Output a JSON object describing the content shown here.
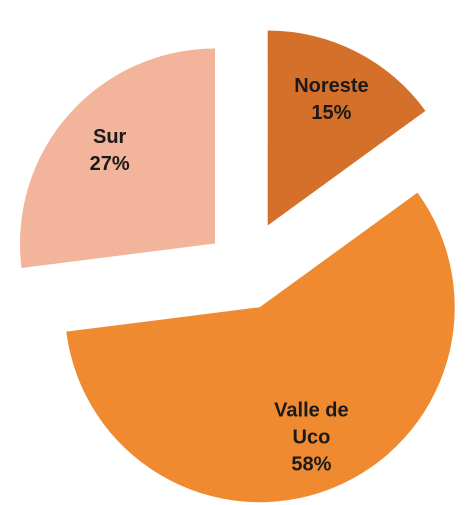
{
  "chart_data": {
    "type": "pie",
    "categories": [
      "Noreste",
      "Valle de Uco",
      "Sur"
    ],
    "values": [
      15,
      58,
      27
    ],
    "value_labels": [
      "15%",
      "58%",
      "27%"
    ],
    "colors": [
      "#d5702a",
      "#f08a30",
      "#f2b49a"
    ]
  }
}
